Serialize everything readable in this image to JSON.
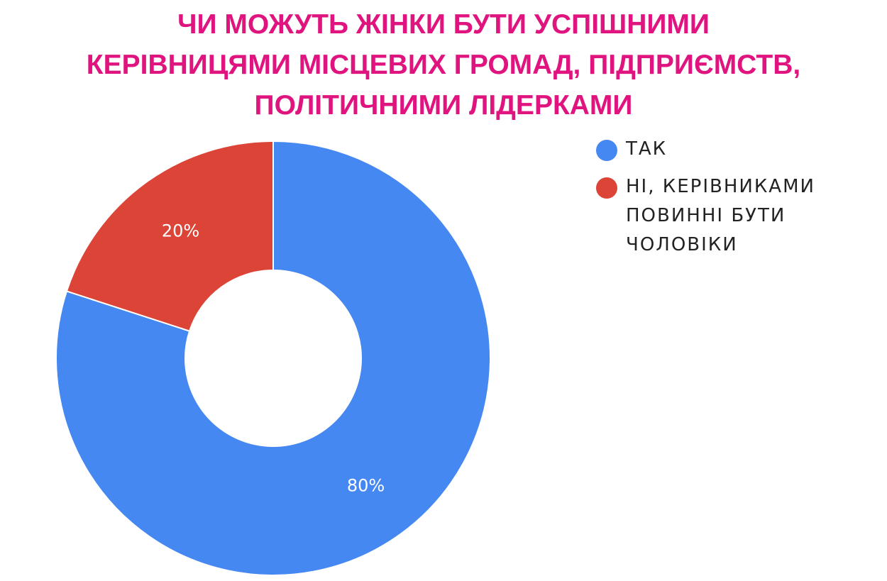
{
  "chart_data": {
    "type": "pie",
    "donut": true,
    "title_lines": [
      "ЧИ МОЖУТЬ ЖІНКИ БУТИ УСПІШНИМИ",
      "КЕРІВНИЦЯМИ МІСЦЕВИХ ГРОМАД, ПІДПРИЄМСТВ,",
      "ПОЛІТИЧНИМИ ЛІДЕРКАМИ"
    ],
    "slices": [
      {
        "label": "ТАК",
        "value": 80,
        "value_label": "80%",
        "color": "#4688f1"
      },
      {
        "label": "НІ, КЕРІВНИКАМИ ПОВИННІ БУТИ ЧОЛОВІКИ",
        "value": 20,
        "value_label": "20%",
        "color": "#db4437"
      }
    ],
    "legend_position": "right",
    "title_color": "#e0147f"
  }
}
